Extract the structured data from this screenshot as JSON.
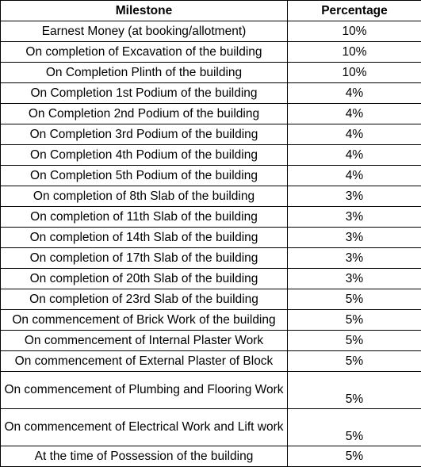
{
  "table": {
    "headers": {
      "milestone": "Milestone",
      "percentage": "Percentage"
    },
    "rows": [
      {
        "milestone": "Earnest Money (at booking/allotment)",
        "percentage": "10%"
      },
      {
        "milestone": "On completion of Excavation of the building",
        "percentage": "10%"
      },
      {
        "milestone": "On Completion Plinth of the building",
        "percentage": "10%"
      },
      {
        "milestone": "On Completion 1st Podium of the building",
        "percentage": "4%"
      },
      {
        "milestone": "On Completion 2nd Podium of the building",
        "percentage": "4%"
      },
      {
        "milestone": "On Completion 3rd Podium of the building",
        "percentage": "4%"
      },
      {
        "milestone": "On Completion 4th Podium of the building",
        "percentage": "4%"
      },
      {
        "milestone": "On Completion 5th Podium of the building",
        "percentage": "4%"
      },
      {
        "milestone": "On completion of 8th Slab of the building",
        "percentage": "3%"
      },
      {
        "milestone": "On completion of 11th Slab of the building",
        "percentage": "3%"
      },
      {
        "milestone": "On completion of 14th Slab of the building",
        "percentage": "3%"
      },
      {
        "milestone": "On completion of 17th Slab of the building",
        "percentage": "3%"
      },
      {
        "milestone": "On completion of 20th Slab of the building",
        "percentage": "3%"
      },
      {
        "milestone": "On completion of 23rd Slab of the building",
        "percentage": "5%"
      },
      {
        "milestone": "On commencement of Brick Work of the building",
        "percentage": "5%"
      },
      {
        "milestone": "On commencement of Internal Plaster Work",
        "percentage": "5%"
      },
      {
        "milestone": "On commencement of External Plaster of Block",
        "percentage": "5%"
      },
      {
        "milestone": "On commencement of Plumbing and Flooring Work",
        "percentage": "5%"
      },
      {
        "milestone": "On commencement of Electrical Work and Lift work",
        "percentage": "5%"
      },
      {
        "milestone": "At the time of Possession of the building",
        "percentage": "5%"
      }
    ]
  }
}
